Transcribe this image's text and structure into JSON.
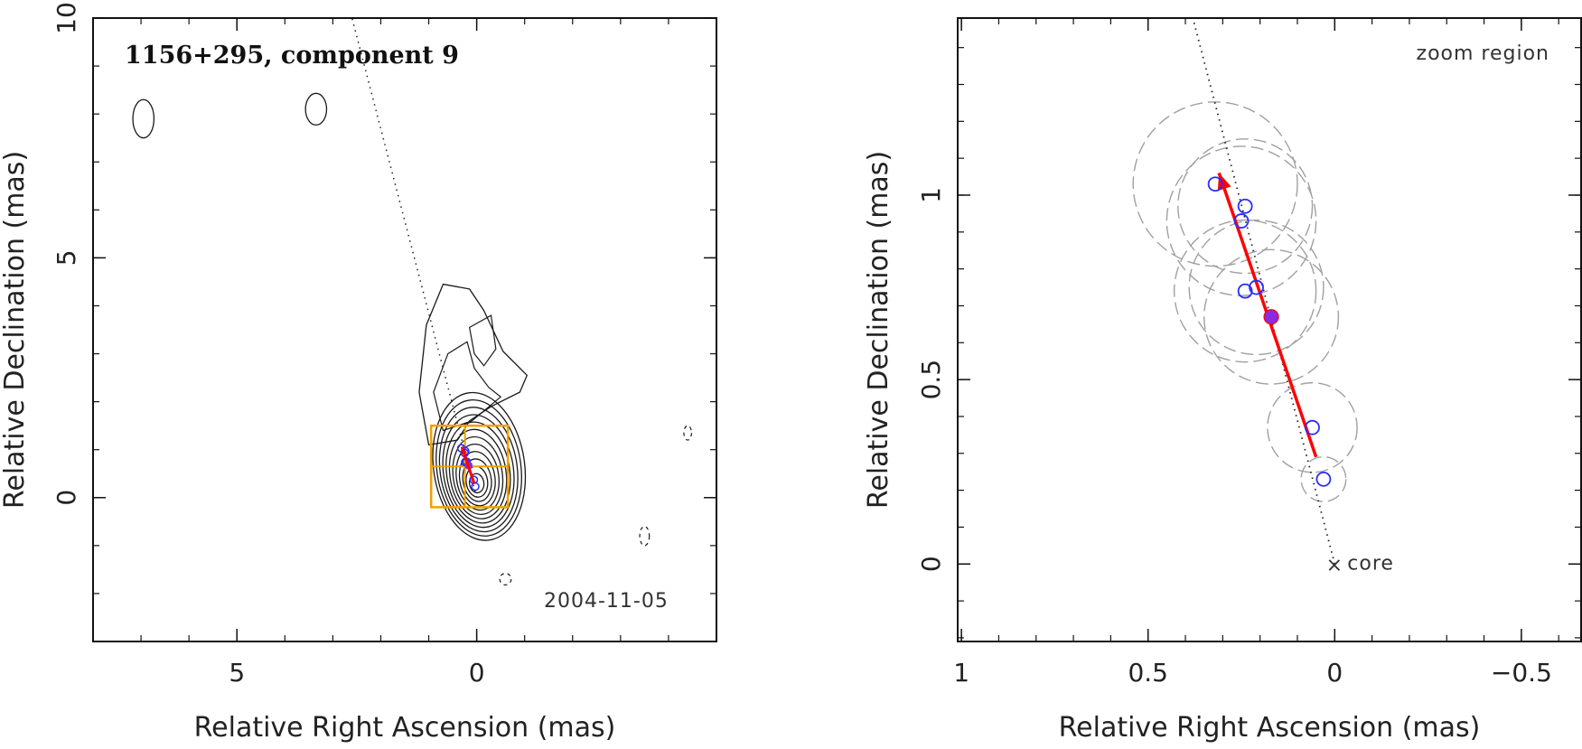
{
  "chart_data": [
    {
      "type": "contour",
      "title": "1156+295, component 9",
      "date_label": "2004-11-05",
      "xlabel": "Relative Right Ascension (mas)",
      "ylabel": "Relative Declination (mas)",
      "xlim": [
        8,
        -5
      ],
      "ylim": [
        -3,
        10
      ],
      "xticks": [
        5,
        0
      ],
      "xtick_labels": [
        "5",
        "0"
      ],
      "yticks": [
        10,
        5,
        0
      ],
      "ytick_labels": [
        "10",
        "5",
        "0"
      ],
      "contour_peak": [
        0,
        0.3
      ],
      "contour_levels": 12,
      "jet_axis_line": {
        "from": [
          0,
          0
        ],
        "to": [
          2.6,
          10
        ]
      },
      "zoom_box": {
        "x": [
          0.95,
          -0.65
        ],
        "y": [
          -0.2,
          1.5
        ]
      },
      "component_positions": [
        {
          "ra": 0.32,
          "dec": 1.03
        },
        {
          "ra": 0.24,
          "dec": 0.97
        },
        {
          "ra": 0.25,
          "dec": 0.93
        },
        {
          "ra": 0.24,
          "dec": 0.74
        },
        {
          "ra": 0.21,
          "dec": 0.75
        },
        {
          "ra": 0.06,
          "dec": 0.37
        },
        {
          "ra": 0.03,
          "dec": 0.23
        }
      ],
      "highlight_position": {
        "ra": 0.17,
        "dec": 0.67
      },
      "motion_vector": {
        "from": [
          0.05,
          0.29
        ],
        "to": [
          0.31,
          1.06
        ]
      }
    },
    {
      "type": "scatter",
      "title": "zoom region",
      "core_label": "core",
      "xlabel": "Relative Right Ascension (mas)",
      "ylabel": "Relative Declination (mas)",
      "xlim": [
        1.01,
        -0.66
      ],
      "ylim": [
        -0.21,
        1.48
      ],
      "xticks": [
        1,
        0.5,
        0,
        -0.5
      ],
      "xtick_labels": [
        "1",
        "0.5",
        "0",
        "−0.5"
      ],
      "yticks": [
        1,
        0.5,
        0
      ],
      "ytick_labels": [
        "1",
        "0.5",
        "0"
      ],
      "core_position": [
        0,
        0
      ],
      "jet_axis_line": {
        "from": [
          0,
          0
        ],
        "to": [
          0.38,
          1.48
        ]
      },
      "components": [
        {
          "ra": 0.32,
          "dec": 1.03,
          "size": 0.22
        },
        {
          "ra": 0.24,
          "dec": 0.97,
          "size": 0.18
        },
        {
          "ra": 0.25,
          "dec": 0.93,
          "size": 0.2
        },
        {
          "ra": 0.24,
          "dec": 0.74,
          "size": 0.19
        },
        {
          "ra": 0.21,
          "dec": 0.75,
          "size": 0.18
        },
        {
          "ra": 0.06,
          "dec": 0.37,
          "size": 0.12
        },
        {
          "ra": 0.03,
          "dec": 0.23,
          "size": 0.06
        }
      ],
      "highlight": {
        "ra": 0.17,
        "dec": 0.67,
        "size": 0.18
      },
      "motion_vector": {
        "from": [
          0.05,
          0.29
        ],
        "to": [
          0.31,
          1.06
        ]
      }
    }
  ],
  "colors": {
    "axes": "#111111",
    "contour": "#1a1a1a",
    "zoom_box": "#f0a000",
    "component": "#2b2bff",
    "highlight": "#8a2be2",
    "vector": "#ff0000",
    "size_circle": "#a0a0a0"
  }
}
